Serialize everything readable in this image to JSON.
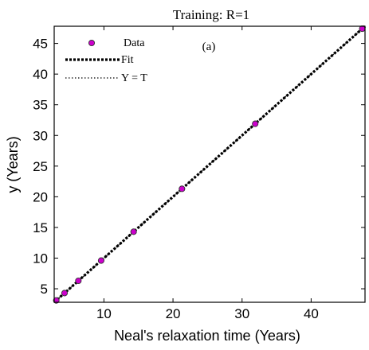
{
  "chart_data": {
    "type": "scatter",
    "title": "Training: R=1",
    "panel_label": "(a)",
    "xlabel": "Neal's relaxation time (Years)",
    "ylabel": "y (Years)",
    "xlim": [
      2.8,
      47.8
    ],
    "ylim": [
      2.8,
      47.8
    ],
    "xticks": [
      10,
      20,
      30,
      40
    ],
    "yticks": [
      5,
      10,
      15,
      20,
      25,
      30,
      35,
      40,
      45
    ],
    "grid": false,
    "legend_position": "top-left",
    "series": [
      {
        "name": "Data",
        "kind": "markers",
        "color": "#cc00cc",
        "edge_color": "#333333",
        "x": [
          3.1,
          4.3,
          6.3,
          9.6,
          14.3,
          21.3,
          31.9,
          47.4
        ],
        "y": [
          3.1,
          4.3,
          6.3,
          9.6,
          14.3,
          21.3,
          31.9,
          47.4
        ]
      },
      {
        "name": "Fit",
        "kind": "line",
        "style": "thick-dotted",
        "color": "#000000",
        "x": [
          2.8,
          47.8
        ],
        "y": [
          2.8,
          47.8
        ]
      },
      {
        "name": "Y = T",
        "kind": "line",
        "style": "thin-dotted",
        "color": "#000000",
        "x": [
          2.8,
          47.8
        ],
        "y": [
          2.8,
          47.8
        ]
      }
    ]
  }
}
